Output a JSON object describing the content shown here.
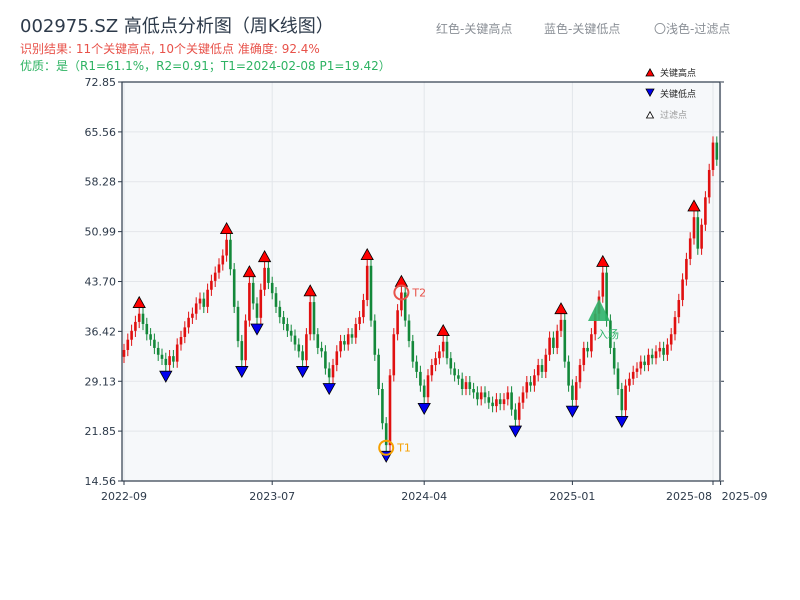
{
  "header": {
    "title": "002975.SZ 高低点分析图（周K线图）",
    "result_line": "识别结果: 11个关键高点, 10个关键低点  准确度: 92.4%",
    "quality_line": "优质：是（R1=61.1%，R2=0.91；T1=2024-02-08 P1=19.42）",
    "legend_red": "红色-关键高点",
    "legend_blue": "蓝色-关键低点",
    "legend_filtered": "〇浅色-过滤点"
  },
  "colors": {
    "up": "#e01010",
    "down": "#13883a",
    "high": "#ff0000",
    "low": "#0000ee",
    "t1": "#f5a000",
    "t2": "#e8524a",
    "entry": "#2eb36a"
  },
  "chart_data": {
    "type": "candlestick",
    "title": "002975.SZ 高低点分析图（周K线图）",
    "ylim": [
      14.56,
      72.85
    ],
    "yticks": [
      "72.85",
      "65.56",
      "58.28",
      "50.99",
      "43.70",
      "36.42",
      "29.13",
      "21.85",
      "14.56"
    ],
    "ytick_values": [
      72.85,
      65.56,
      58.28,
      50.99,
      43.7,
      36.42,
      29.13,
      21.85,
      14.56
    ],
    "xticks": [
      {
        "label": "2022-09",
        "week": 0
      },
      {
        "label": "2023-07",
        "week": 39
      },
      {
        "label": "2024-04",
        "week": 79
      },
      {
        "label": "2025-01",
        "week": 118
      },
      {
        "label": "2025-08",
        "week": 155
      },
      {
        "label": "2025-09",
        "week": 157
      }
    ],
    "closes": [
      33.7,
      35.2,
      36.5,
      37.8,
      39.0,
      37.5,
      36.0,
      35.2,
      34.0,
      33.0,
      32.4,
      31.5,
      32.8,
      32.0,
      34.5,
      35.6,
      37.0,
      38.4,
      39.0,
      40.5,
      41.2,
      40.0,
      42.5,
      43.8,
      45.0,
      46.2,
      47.5,
      49.8,
      45.5,
      40.0,
      35.0,
      32.2,
      38.0,
      43.5,
      40.5,
      38.4,
      42.5,
      45.7,
      43.5,
      42.0,
      40.0,
      38.5,
      37.5,
      36.5,
      35.8,
      34.5,
      33.5,
      32.2,
      36.0,
      40.7,
      36.0,
      34.0,
      33.5,
      31.0,
      29.7,
      31.5,
      33.5,
      35.0,
      34.5,
      36.0,
      35.5,
      37.5,
      38.5,
      41.0,
      46.0,
      38.0,
      33.0,
      28.0,
      23.0,
      19.8,
      30.0,
      36.0,
      39.5,
      42.1,
      38.0,
      35.0,
      32.0,
      30.5,
      28.5,
      26.8,
      30.0,
      31.5,
      32.5,
      33.5,
      34.9,
      32.5,
      31.0,
      30.0,
      29.5,
      28.0,
      29.0,
      28.0,
      27.5,
      26.5,
      27.5,
      26.8,
      26.0,
      25.5,
      26.5,
      25.8,
      26.5,
      27.5,
      25.0,
      23.5,
      26.0,
      27.5,
      29.0,
      28.5,
      30.0,
      31.5,
      30.5,
      33.0,
      35.5,
      34.0,
      36.5,
      38.1,
      32.0,
      28.5,
      26.4,
      29.0,
      31.5,
      34.0,
      33.5,
      36.0,
      39.0,
      41.5,
      45.0,
      38.0,
      34.0,
      31.0,
      28.0,
      24.9,
      28.5,
      29.5,
      30.5,
      31.0,
      32.0,
      31.5,
      33.0,
      32.5,
      33.5,
      34.0,
      33.0,
      34.5,
      36.0,
      38.5,
      41.0,
      44.0,
      47.0,
      50.0,
      53.1,
      48.5,
      52.0,
      56.0,
      60.0,
      64.0,
      61.5
    ],
    "key_highs": [
      4,
      27,
      33,
      37,
      49,
      64,
      73,
      84,
      115,
      126,
      150
    ],
    "key_lows": [
      11,
      31,
      35,
      47,
      54,
      69,
      79,
      103,
      118,
      131
    ],
    "annotations": [
      {
        "label": "T1",
        "week": 69,
        "price": 19.42,
        "kind": "low"
      },
      {
        "label": "T2",
        "week": 73,
        "price": 42.1,
        "kind": "high"
      },
      {
        "label": "入场",
        "week": 125,
        "price": 39.1,
        "kind": "entry"
      }
    ],
    "legend": [
      {
        "label": "关键高点",
        "marker": "red-up-triangle"
      },
      {
        "label": "关键低点",
        "marker": "blue-down-triangle"
      },
      {
        "label": "过滤点",
        "marker": "hollow-triangle"
      }
    ],
    "legend_position": "top-right"
  }
}
